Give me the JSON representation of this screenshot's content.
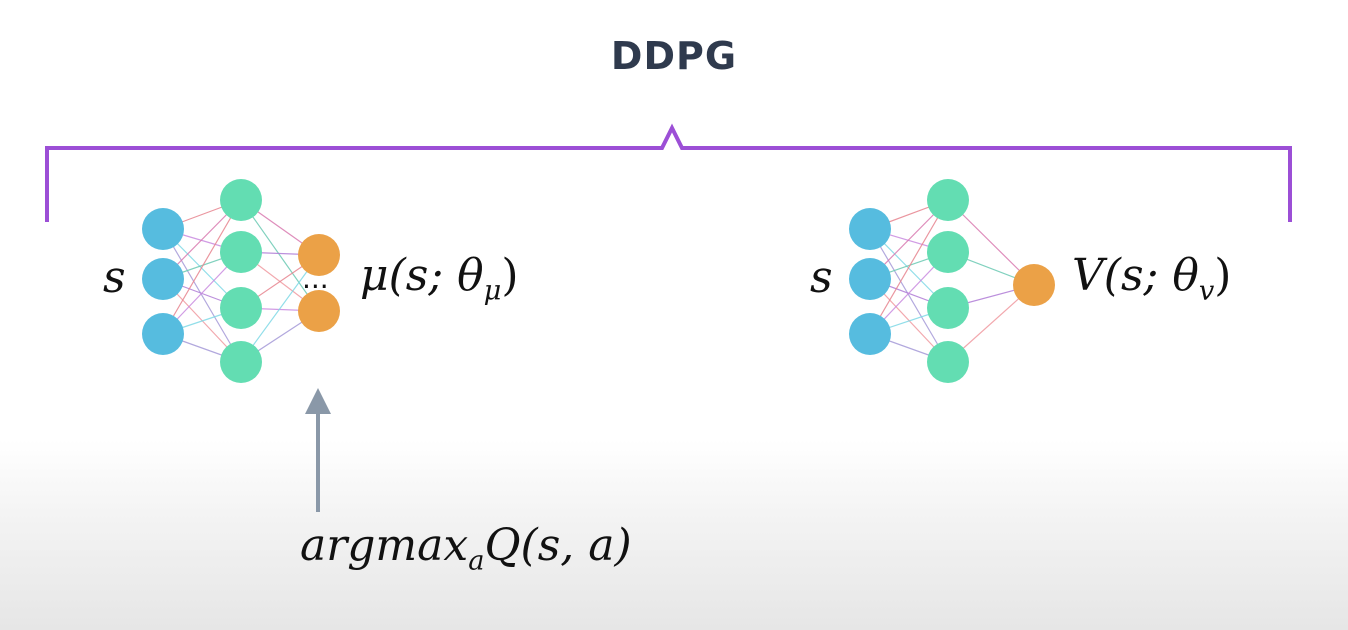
{
  "title": "DDPG",
  "colors": {
    "bracket": "#9c4fd6",
    "input_node": "#56bcdf",
    "hidden_node": "#63ddb2",
    "output_node": "#eba147",
    "arrow": "#8a98a8"
  },
  "actor": {
    "input_label": "s",
    "output_func": "μ",
    "output_args": "(s; θ",
    "output_sub": "μ",
    "output_close": ")",
    "ellipsis": "...",
    "arrow_label_main": "argmax",
    "arrow_label_sub": "a",
    "arrow_label_rest": "Q(s, a)"
  },
  "critic": {
    "input_label": "s",
    "output_func": "V",
    "output_args": "(s; θ",
    "output_sub": "v",
    "output_close": ")"
  }
}
